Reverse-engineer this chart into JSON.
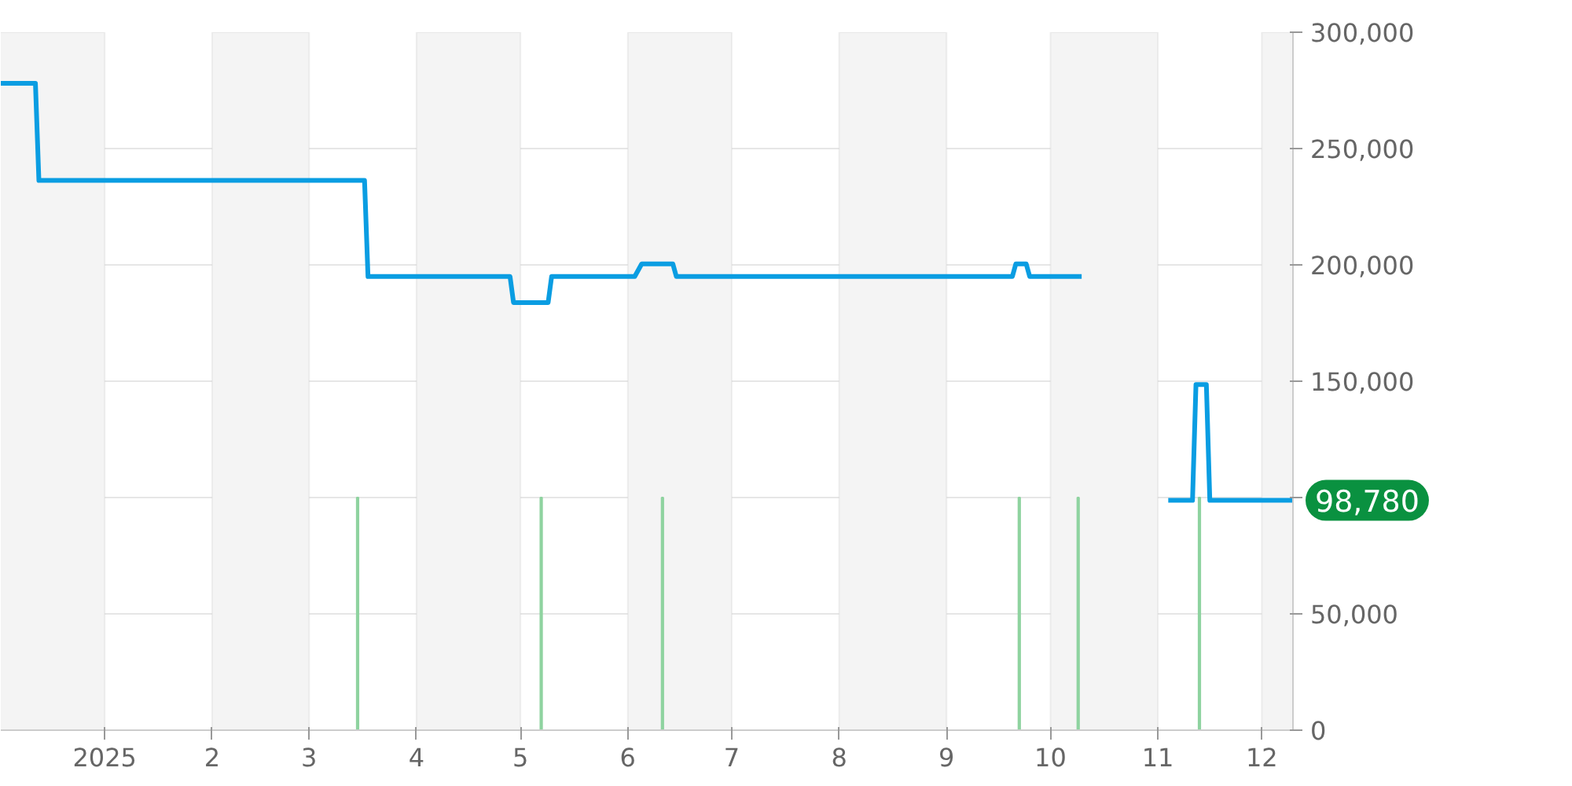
{
  "chart_data": {
    "type": "line",
    "series": [
      {
        "color": "#0a9de2",
        "x": [
          "2024-12-02",
          "2024-12-12",
          "2024-12-13",
          "2025-03-17",
          "2025-03-18",
          "2025-04-28",
          "2025-04-29",
          "2025-05-09",
          "2025-05-10",
          "2025-06-03",
          "2025-06-05",
          "2025-06-14",
          "2025-06-15",
          "2025-09-20",
          "2025-09-21",
          "2025-09-24",
          "2025-09-25",
          "2025-10-10",
          "2025-10-20",
          "2025-11-04",
          "2025-11-11",
          "2025-11-12",
          "2025-11-15",
          "2025-11-16",
          "2025-12-10"
        ],
        "values": [
          278000,
          278000,
          236300,
          236300,
          195000,
          195000,
          183800,
          183800,
          195000,
          195000,
          200400,
          200400,
          195000,
          195000,
          200400,
          200400,
          195000,
          195000,
          null,
          98800,
          98800,
          148600,
          148600,
          98800,
          98780
        ]
      },
      {
        "type": "bar",
        "color": "#8fd3a0",
        "x": [
          "2025-03-15",
          "2025-05-07",
          "2025-06-11",
          "2025-09-22",
          "2025-10-09",
          "2025-11-13"
        ],
        "values": [
          100000,
          100000,
          100000,
          100000,
          100000,
          100000
        ]
      }
    ],
    "xlim": [
      "2024-12-02",
      "2025-12-10"
    ],
    "xticks": [
      {
        "value": "2025-01-01",
        "label": "2025"
      },
      {
        "value": "2025-02-01",
        "label": "2"
      },
      {
        "value": "2025-03-01",
        "label": "3"
      },
      {
        "value": "2025-04-01",
        "label": "4"
      },
      {
        "value": "2025-05-01",
        "label": "5"
      },
      {
        "value": "2025-06-01",
        "label": "6"
      },
      {
        "value": "2025-07-01",
        "label": "7"
      },
      {
        "value": "2025-08-01",
        "label": "8"
      },
      {
        "value": "2025-09-01",
        "label": "9"
      },
      {
        "value": "2025-10-01",
        "label": "10"
      },
      {
        "value": "2025-11-01",
        "label": "11"
      },
      {
        "value": "2025-12-01",
        "label": "12"
      }
    ],
    "ylim": [
      0,
      300000
    ],
    "yticks": [
      {
        "value": 0,
        "label": "0"
      },
      {
        "value": 50000,
        "label": "50,000"
      },
      {
        "value": 100000,
        "label": null
      },
      {
        "value": 150000,
        "label": "150,000"
      },
      {
        "value": 200000,
        "label": "200,000"
      },
      {
        "value": 250000,
        "label": "250,000"
      },
      {
        "value": 300000,
        "label": "300,000"
      }
    ],
    "bands": [
      {
        "axis": "x",
        "from": "2024-12-01",
        "to": "2025-01-01",
        "color": "#f4f4f4"
      },
      {
        "axis": "x",
        "from": "2025-02-01",
        "to": "2025-03-01",
        "color": "#f4f4f4"
      },
      {
        "axis": "x",
        "from": "2025-04-01",
        "to": "2025-05-01",
        "color": "#f4f4f4"
      },
      {
        "axis": "x",
        "from": "2025-06-01",
        "to": "2025-07-01",
        "color": "#f4f4f4"
      },
      {
        "axis": "x",
        "from": "2025-08-01",
        "to": "2025-09-01",
        "color": "#f4f4f4"
      },
      {
        "axis": "x",
        "from": "2025-10-01",
        "to": "2025-11-01",
        "color": "#f4f4f4"
      },
      {
        "axis": "x",
        "from": "2025-12-01",
        "to": "2025-12-10",
        "color": "#f4f4f4"
      }
    ],
    "annotations": [
      {
        "text": "98,780",
        "x": "2025-12-10",
        "y": 98780
      }
    ],
    "grid": "y"
  }
}
